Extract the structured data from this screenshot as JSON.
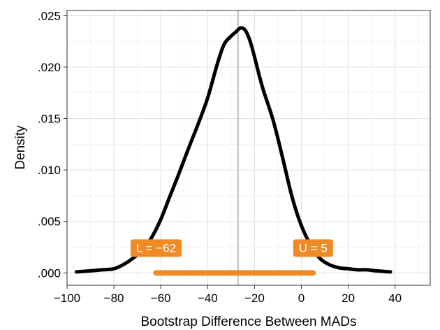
{
  "chart_data": {
    "type": "line",
    "title": "",
    "xlabel": "Bootstrap Difference Between MADs",
    "ylabel": "Density",
    "xlim": [
      -100,
      55
    ],
    "ylim": [
      -0.0012,
      0.0255
    ],
    "grid": true,
    "x_ticks": [
      -100,
      -80,
      -60,
      -40,
      -20,
      0,
      20,
      40
    ],
    "x_tick_labels": [
      "−100",
      "−80",
      "−60",
      "−40",
      "−20",
      "0",
      "20",
      "40"
    ],
    "y_ticks": [
      0,
      0.005,
      0.01,
      0.015,
      0.02,
      0.025
    ],
    "y_tick_labels": [
      ".000",
      ".005",
      ".010",
      ".015",
      ".020",
      ".025"
    ],
    "series": [
      {
        "x": [
          -96,
          -90,
          -85,
          -80,
          -76,
          -72,
          -68,
          -64,
          -60,
          -56,
          -52,
          -48,
          -44,
          -40,
          -36,
          -33,
          -30,
          -28,
          -26,
          -24,
          -22,
          -20,
          -18,
          -16,
          -12,
          -8,
          -4,
          0,
          4,
          8,
          12,
          16,
          20,
          24,
          28,
          32,
          38
        ],
        "y": [
          0.0001,
          0.0002,
          0.0003,
          0.0004,
          0.0008,
          0.0014,
          0.0022,
          0.0034,
          0.0052,
          0.0075,
          0.0098,
          0.0122,
          0.0145,
          0.017,
          0.0202,
          0.0222,
          0.023,
          0.0234,
          0.0238,
          0.0236,
          0.0226,
          0.021,
          0.0192,
          0.0176,
          0.0148,
          0.0112,
          0.0074,
          0.0046,
          0.0027,
          0.0014,
          0.0008,
          0.0005,
          0.0004,
          0.0003,
          0.0003,
          0.0002,
          0.0001
        ],
        "color": "#000000"
      }
    ],
    "reference_line": {
      "x": -27,
      "color": "#bfbfbf"
    },
    "interval": {
      "lower": -62,
      "upper": 5,
      "y": 0.0,
      "color": "#f08a24",
      "lower_label": "L = −62",
      "upper_label": "U = 5"
    }
  }
}
